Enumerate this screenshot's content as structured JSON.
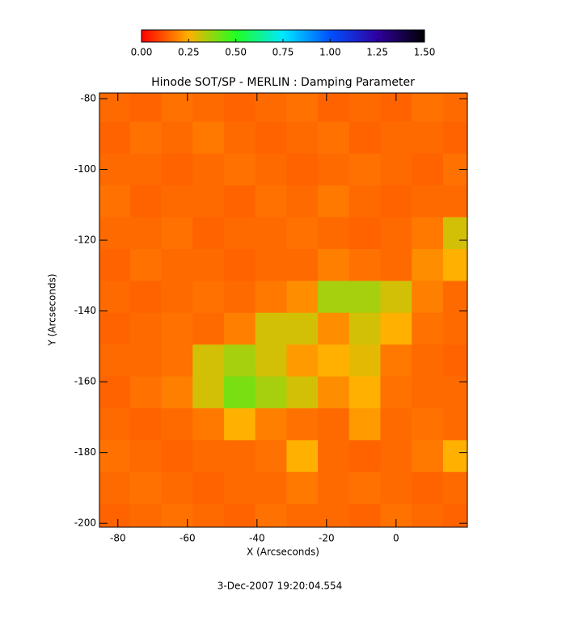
{
  "chart_data": {
    "type": "heatmap",
    "title": "Hinode SOT/SP - MERLIN : Damping Parameter",
    "x_label": "X (Arcseconds)",
    "y_label": "Y (Arcseconds)",
    "footnote": "3-Dec-2007 19:20:04.554",
    "xlim": [
      -85.3,
      20.5
    ],
    "ylim": [
      -201.1,
      -78.4
    ],
    "xticks": [
      -80,
      -60,
      -40,
      -20,
      0
    ],
    "yticks": [
      -80,
      -100,
      -120,
      -140,
      -160,
      -180,
      -200
    ],
    "colorbar": {
      "range": [
        0,
        1.5
      ],
      "ticks": [
        {
          "value": 0,
          "label": "0.00"
        },
        {
          "value": 0.25,
          "label": "0.25"
        },
        {
          "value": 0.5,
          "label": "0.50"
        },
        {
          "value": 0.75,
          "label": "0.75"
        },
        {
          "value": 1.0,
          "label": "1.00"
        },
        {
          "value": 1.25,
          "label": "1.25"
        },
        {
          "value": 1.5,
          "label": "1.50"
        }
      ],
      "colors": [
        "#ff0000",
        "#ffb000",
        "#20ff20",
        "#00e8ff",
        "#0050ff",
        "#3000a0",
        "#000000"
      ]
    },
    "x": [
      -81,
      -72,
      -63,
      -54,
      -45,
      -36,
      -27,
      -18,
      -9,
      0,
      9,
      18
    ],
    "y": [
      -82,
      -91,
      -100,
      -109,
      -118,
      -127,
      -136,
      -145,
      -154,
      -163,
      -172,
      -181,
      -190,
      -199
    ],
    "z": [
      [
        0.15,
        0.14,
        0.16,
        0.15,
        0.14,
        0.15,
        0.16,
        0.14,
        0.15,
        0.14,
        0.16,
        0.15
      ],
      [
        0.14,
        0.16,
        0.15,
        0.17,
        0.15,
        0.14,
        0.15,
        0.16,
        0.14,
        0.15,
        0.15,
        0.14
      ],
      [
        0.15,
        0.15,
        0.14,
        0.15,
        0.16,
        0.15,
        0.14,
        0.15,
        0.16,
        0.15,
        0.14,
        0.16
      ],
      [
        0.16,
        0.14,
        0.15,
        0.15,
        0.14,
        0.16,
        0.15,
        0.17,
        0.15,
        0.14,
        0.15,
        0.15
      ],
      [
        0.15,
        0.15,
        0.16,
        0.14,
        0.15,
        0.15,
        0.16,
        0.15,
        0.14,
        0.15,
        0.17,
        0.3
      ],
      [
        0.14,
        0.16,
        0.15,
        0.15,
        0.14,
        0.15,
        0.15,
        0.18,
        0.16,
        0.15,
        0.2,
        0.25
      ],
      [
        0.15,
        0.14,
        0.15,
        0.16,
        0.15,
        0.17,
        0.2,
        0.35,
        0.35,
        0.3,
        0.18,
        0.15
      ],
      [
        0.14,
        0.15,
        0.16,
        0.15,
        0.18,
        0.3,
        0.3,
        0.2,
        0.3,
        0.25,
        0.16,
        0.15
      ],
      [
        0.15,
        0.15,
        0.16,
        0.3,
        0.35,
        0.3,
        0.22,
        0.25,
        0.28,
        0.17,
        0.15,
        0.14
      ],
      [
        0.14,
        0.16,
        0.18,
        0.3,
        0.4,
        0.35,
        0.3,
        0.2,
        0.25,
        0.16,
        0.15,
        0.15
      ],
      [
        0.15,
        0.14,
        0.15,
        0.17,
        0.25,
        0.18,
        0.16,
        0.15,
        0.22,
        0.15,
        0.16,
        0.15
      ],
      [
        0.16,
        0.15,
        0.14,
        0.15,
        0.15,
        0.16,
        0.25,
        0.15,
        0.14,
        0.15,
        0.17,
        0.25
      ],
      [
        0.15,
        0.16,
        0.15,
        0.14,
        0.15,
        0.15,
        0.17,
        0.15,
        0.16,
        0.15,
        0.14,
        0.15
      ],
      [
        0.14,
        0.15,
        0.16,
        0.15,
        0.14,
        0.16,
        0.15,
        0.15,
        0.14,
        0.16,
        0.15,
        0.14
      ]
    ]
  }
}
